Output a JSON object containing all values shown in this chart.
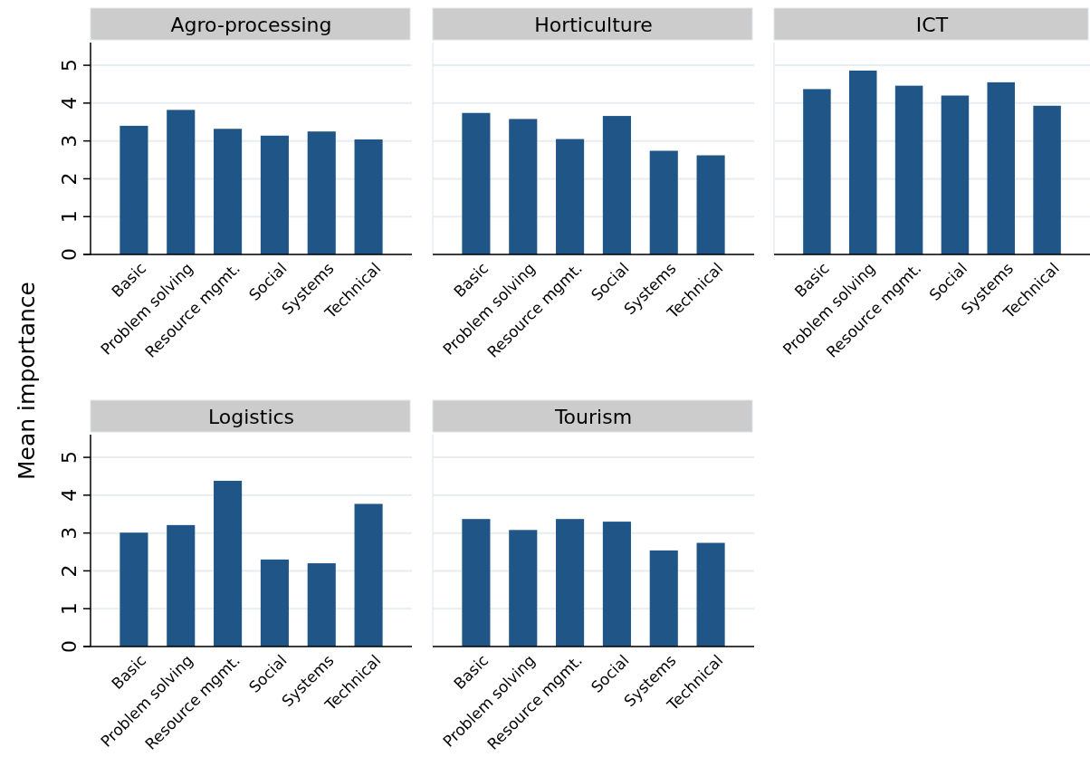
{
  "chart_data": [
    {
      "type": "bar",
      "title": "Agro-processing",
      "ylabel": "Mean importance",
      "categories": [
        "Basic",
        "Problem solving",
        "Resource mgmt.",
        "Social",
        "Systems",
        "Technical"
      ],
      "values": [
        3.4,
        3.82,
        3.32,
        3.14,
        3.25,
        3.04
      ],
      "color": "#1f5587",
      "ylim": [
        0,
        5.6
      ],
      "yticks": [
        0,
        1,
        2,
        3,
        4,
        5
      ],
      "grid": "y"
    },
    {
      "type": "bar",
      "title": "Horticulture",
      "categories": [
        "Basic",
        "Problem solving",
        "Resource mgmt.",
        "Social",
        "Systems",
        "Technical"
      ],
      "values": [
        3.74,
        3.58,
        3.05,
        3.66,
        2.74,
        2.62
      ],
      "color": "#1f5587",
      "ylim": [
        0,
        5.6
      ],
      "yticks": [
        0,
        1,
        2,
        3,
        4,
        5
      ],
      "grid": "y",
      "tick_labels": "x"
    },
    {
      "type": "bar",
      "title": "ICT",
      "categories": [
        "Basic",
        "Problem solving",
        "Resource mgmt.",
        "Social",
        "Systems",
        "Technical"
      ],
      "values": [
        4.37,
        4.86,
        4.46,
        4.2,
        4.55,
        3.93
      ],
      "color": "#1f5587",
      "ylim": [
        0,
        5.6
      ],
      "yticks": [
        0,
        1,
        2,
        3,
        4,
        5
      ],
      "grid": "y",
      "tick_labels": "x"
    },
    {
      "type": "bar",
      "title": "Logistics",
      "categories": [
        "Basic",
        "Problem solving",
        "Resource mgmt.",
        "Social",
        "Systems",
        "Technical"
      ],
      "values": [
        3.01,
        3.21,
        4.38,
        2.3,
        2.2,
        3.77
      ],
      "color": "#1f5587",
      "ylim": [
        0,
        5.6
      ],
      "yticks": [
        0,
        1,
        2,
        3,
        4,
        5
      ],
      "grid": "y"
    },
    {
      "type": "bar",
      "title": "Tourism",
      "categories": [
        "Basic",
        "Problem solving",
        "Resource mgmt.",
        "Social",
        "Systems",
        "Technical"
      ],
      "values": [
        3.37,
        3.08,
        3.37,
        3.3,
        2.54,
        2.74
      ],
      "color": "#1f5587",
      "ylim": [
        0,
        5.6
      ],
      "yticks": [
        0,
        1,
        2,
        3,
        4,
        5
      ],
      "grid": "y",
      "tick_labels": "x"
    }
  ]
}
